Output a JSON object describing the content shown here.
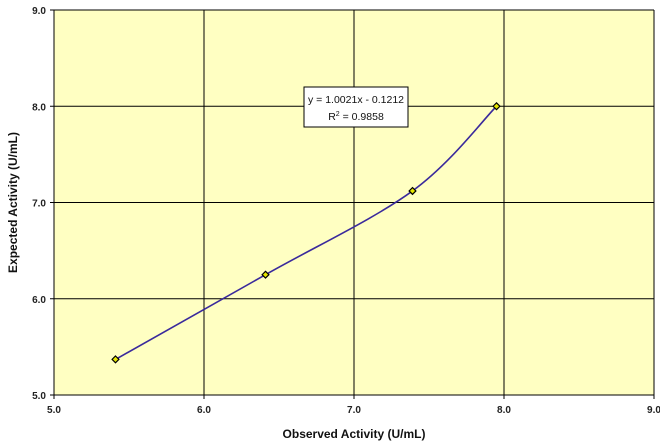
{
  "chart_data": {
    "type": "scatter",
    "xlabel": "Observed Activity (U/mL)",
    "ylabel": "Expected Activity (U/mL)",
    "xlim": [
      5.0,
      9.0
    ],
    "ylim": [
      5.0,
      9.0
    ],
    "x_ticks": [
      "5.0",
      "6.0",
      "7.0",
      "8.0",
      "9.0"
    ],
    "y_ticks": [
      "5.0",
      "6.0",
      "7.0",
      "8.0",
      "9.0"
    ],
    "grid": true,
    "legend": "none",
    "points": [
      {
        "x": 5.41,
        "y": 5.37
      },
      {
        "x": 6.41,
        "y": 6.25
      },
      {
        "x": 7.39,
        "y": 7.12
      },
      {
        "x": 7.95,
        "y": 8.0
      }
    ],
    "trendline": {
      "equation": "y = 1.0021x - 0.1212",
      "r2_prefix": "R",
      "r2_exp": "2",
      "r2_suffix": " = 0.9858"
    },
    "colors": {
      "plot_background": "#FFFFC2",
      "line": "#3A2A9C",
      "marker_fill": "#E6E600",
      "marker_edge": "#000000",
      "grid": "#000000"
    }
  }
}
